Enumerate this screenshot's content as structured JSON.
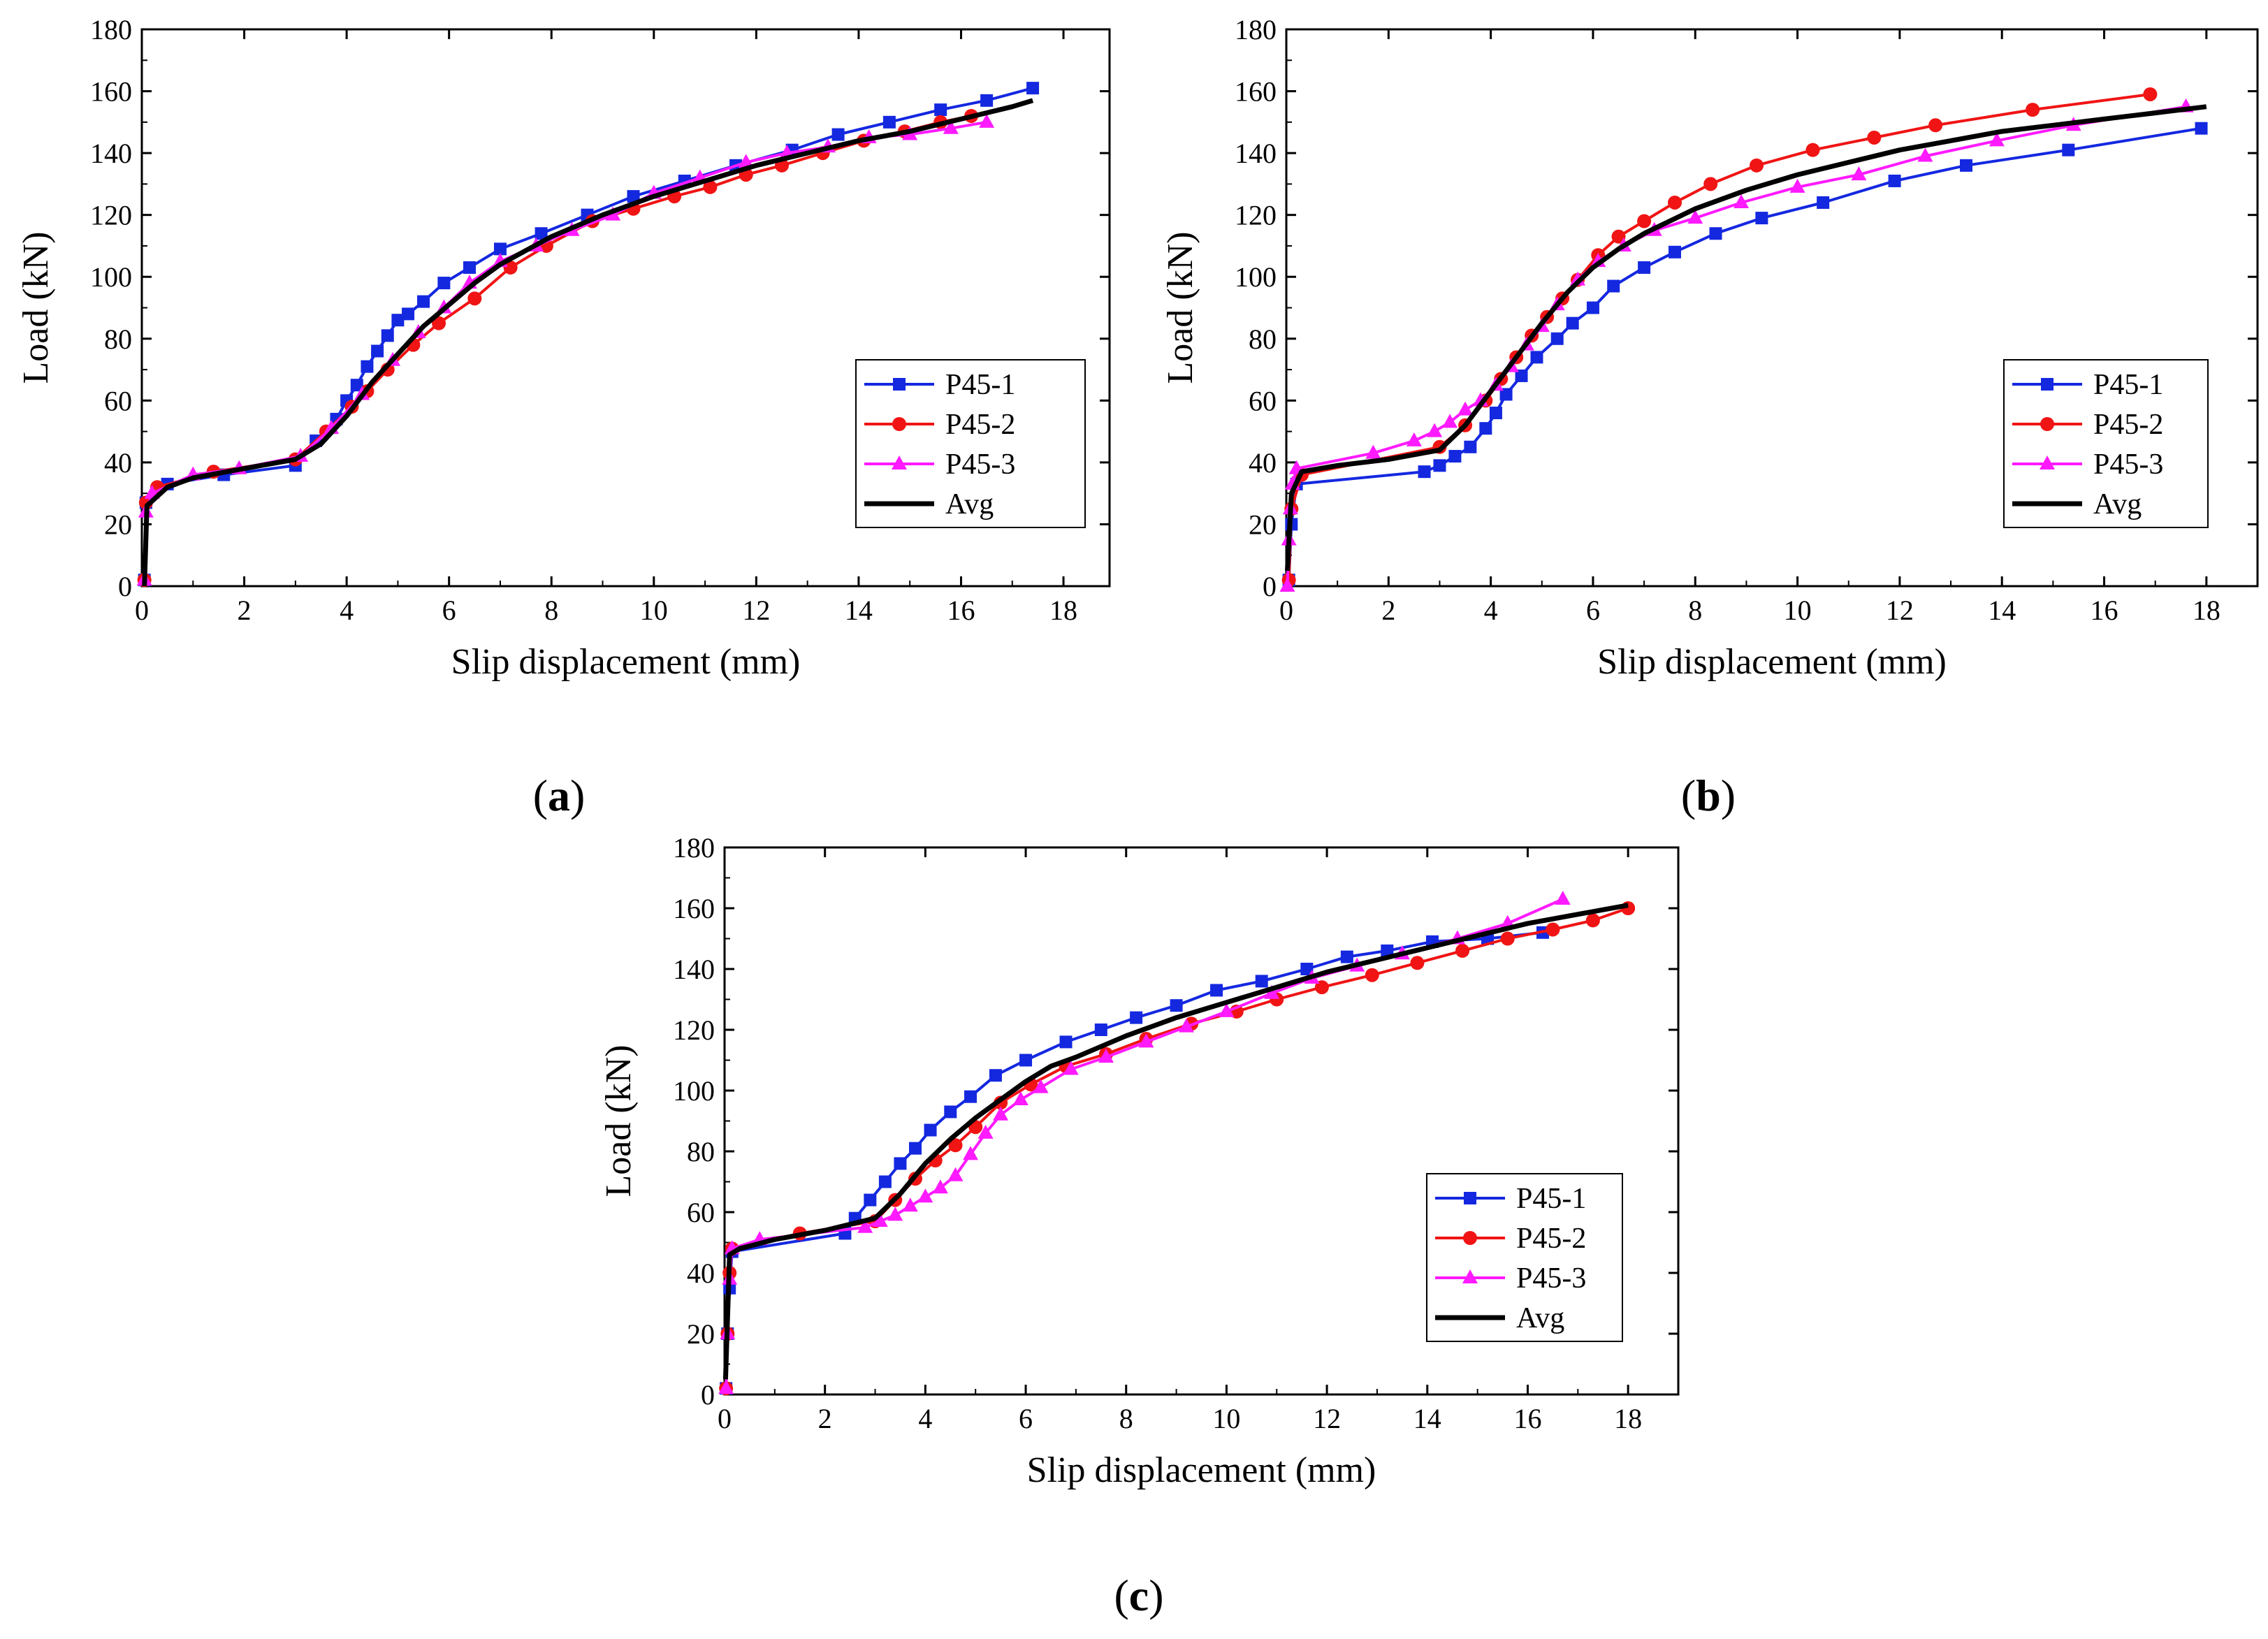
{
  "figure": {
    "panels": [
      "(a)",
      "(b)",
      "(c)"
    ],
    "panel_label_parts": [
      {
        "open": "(",
        "letter": "a",
        "close": ")"
      },
      {
        "open": "(",
        "letter": "b",
        "close": ")"
      },
      {
        "open": "(",
        "letter": "c",
        "close": ")"
      }
    ]
  },
  "colors": {
    "P45-1": "#1428e0",
    "P45-2": "#f01414",
    "P45-3": "#ff1aff",
    "Avg": "#000000"
  },
  "chart_data": [
    {
      "type": "line",
      "panel": "(a)",
      "xlabel": "Slip displacement (mm)",
      "ylabel": "Load (kN)",
      "xlim": [
        0,
        18.9
      ],
      "ylim": [
        0,
        180
      ],
      "xticks": [
        0,
        2,
        4,
        6,
        8,
        10,
        12,
        14,
        16,
        18
      ],
      "yticks": [
        0,
        20,
        40,
        60,
        80,
        100,
        120,
        140,
        160,
        180
      ],
      "legend": "bottom-right",
      "series": [
        {
          "name": "P45-1",
          "marker": "square",
          "x": [
            0.05,
            0.08,
            0.5,
            1.6,
            3.0,
            3.4,
            3.8,
            4.0,
            4.2,
            4.4,
            4.6,
            4.8,
            5.0,
            5.2,
            5.5,
            5.9,
            6.4,
            7.0,
            7.8,
            8.7,
            9.6,
            10.6,
            11.6,
            12.7,
            13.6,
            14.6,
            15.6,
            16.5,
            17.4
          ],
          "y": [
            2,
            27,
            33,
            36,
            39,
            47,
            54,
            60,
            65,
            71,
            76,
            81,
            86,
            88,
            92,
            98,
            103,
            109,
            114,
            120,
            126,
            131,
            136,
            141,
            146,
            150,
            154,
            157,
            161
          ]
        },
        {
          "name": "P45-2",
          "marker": "circle",
          "x": [
            0.05,
            0.08,
            0.3,
            1.4,
            3.0,
            3.6,
            4.1,
            4.4,
            4.8,
            5.3,
            5.8,
            6.5,
            7.2,
            7.9,
            8.8,
            9.6,
            10.4,
            11.1,
            11.8,
            12.5,
            13.3,
            14.1,
            14.9,
            15.6,
            16.2
          ],
          "y": [
            2,
            27,
            32,
            37,
            41,
            50,
            58,
            63,
            70,
            78,
            85,
            93,
            103,
            110,
            118,
            122,
            126,
            129,
            133,
            136,
            140,
            144,
            147,
            150,
            152
          ]
        },
        {
          "name": "P45-3",
          "marker": "triangle",
          "x": [
            0.05,
            0.08,
            0.2,
            1.0,
            1.9,
            3.1,
            3.7,
            4.3,
            4.9,
            5.4,
            5.9,
            6.4,
            7.0,
            7.7,
            8.4,
            9.2,
            10.0,
            10.9,
            11.8,
            12.6,
            13.4,
            14.2,
            15.0,
            15.8,
            16.5
          ],
          "y": [
            2,
            24,
            30,
            36,
            38,
            42,
            51,
            62,
            73,
            82,
            90,
            98,
            105,
            110,
            115,
            120,
            127,
            132,
            137,
            140,
            142,
            145,
            146,
            148,
            150
          ]
        },
        {
          "name": "Avg",
          "marker": "none",
          "x": [
            0.05,
            0.1,
            0.5,
            1.0,
            2.0,
            3.0,
            3.5,
            4.0,
            4.5,
            5.0,
            5.5,
            6.0,
            6.5,
            7.0,
            8.0,
            9.0,
            10.0,
            11.0,
            12.0,
            13.0,
            14.0,
            15.0,
            16.0,
            17.0,
            17.4
          ],
          "y": [
            0,
            26,
            32,
            35,
            38,
            41,
            46,
            55,
            66,
            75,
            84,
            91,
            98,
            104,
            113,
            120,
            126,
            131,
            136,
            140,
            144,
            147,
            151,
            155,
            157
          ]
        }
      ]
    },
    {
      "type": "line",
      "panel": "(b)",
      "xlabel": "Slip displacement (mm)",
      "ylabel": "Load (kN)",
      "xlim": [
        0,
        19.0
      ],
      "ylim": [
        0,
        180
      ],
      "xticks": [
        0,
        2,
        4,
        6,
        8,
        10,
        12,
        14,
        16,
        18
      ],
      "yticks": [
        0,
        20,
        40,
        60,
        80,
        100,
        120,
        140,
        160,
        180
      ],
      "legend": "bottom-right",
      "series": [
        {
          "name": "P45-1",
          "marker": "square",
          "x": [
            0.05,
            0.1,
            0.2,
            2.7,
            3.0,
            3.3,
            3.6,
            3.9,
            4.1,
            4.3,
            4.6,
            4.9,
            5.3,
            5.6,
            6.0,
            6.4,
            7.0,
            7.6,
            8.4,
            9.3,
            10.5,
            11.9,
            13.3,
            15.3,
            17.9
          ],
          "y": [
            2,
            20,
            33,
            37,
            39,
            42,
            45,
            51,
            56,
            62,
            68,
            74,
            80,
            85,
            90,
            97,
            103,
            108,
            114,
            119,
            124,
            131,
            136,
            141,
            148
          ]
        },
        {
          "name": "P45-2",
          "marker": "circle",
          "x": [
            0.05,
            0.1,
            0.3,
            3.0,
            3.5,
            3.9,
            4.2,
            4.5,
            4.8,
            5.1,
            5.4,
            5.7,
            6.1,
            6.5,
            7.0,
            7.6,
            8.3,
            9.2,
            10.3,
            11.5,
            12.7,
            14.6,
            16.9
          ],
          "y": [
            2,
            25,
            36,
            45,
            52,
            60,
            67,
            74,
            81,
            87,
            93,
            99,
            107,
            113,
            118,
            124,
            130,
            136,
            141,
            145,
            149,
            154,
            159
          ]
        },
        {
          "name": "P45-3",
          "marker": "triangle",
          "x": [
            0.02,
            0.05,
            0.08,
            0.12,
            0.2,
            1.7,
            2.5,
            2.9,
            3.2,
            3.5,
            3.8,
            4.1,
            4.4,
            4.7,
            5.0,
            5.3,
            5.7,
            6.1,
            6.6,
            7.2,
            8.0,
            8.9,
            10.0,
            11.2,
            12.5,
            13.9,
            15.4,
            17.6
          ],
          "y": [
            0,
            15,
            25,
            33,
            38,
            43,
            47,
            50,
            53,
            57,
            60,
            65,
            71,
            78,
            84,
            91,
            99,
            105,
            110,
            115,
            119,
            124,
            129,
            133,
            139,
            144,
            149,
            155
          ]
        },
        {
          "name": "Avg",
          "marker": "none",
          "x": [
            0.02,
            0.1,
            0.3,
            1.0,
            2.0,
            3.0,
            3.5,
            4.0,
            4.5,
            5.0,
            5.5,
            6.0,
            6.5,
            7.0,
            8.0,
            9.0,
            10.0,
            11.0,
            12.0,
            13.0,
            14.0,
            15.0,
            16.0,
            17.0,
            18.0
          ],
          "y": [
            5,
            30,
            37,
            39,
            41,
            44,
            52,
            63,
            74,
            85,
            95,
            103,
            109,
            114,
            122,
            128,
            133,
            137,
            141,
            144,
            147,
            149,
            151,
            153,
            155
          ]
        }
      ]
    },
    {
      "type": "line",
      "panel": "(c)",
      "xlabel": "Slip displacement (mm)",
      "ylabel": "Load (kN)",
      "xlim": [
        0,
        19.0
      ],
      "ylim": [
        0,
        180
      ],
      "xticks": [
        0,
        2,
        4,
        6,
        8,
        10,
        12,
        14,
        16,
        18
      ],
      "yticks": [
        0,
        20,
        40,
        60,
        80,
        100,
        120,
        140,
        160,
        180
      ],
      "legend": "bottom-right",
      "series": [
        {
          "name": "P45-1",
          "marker": "square",
          "x": [
            0.03,
            0.06,
            0.1,
            0.15,
            2.4,
            2.6,
            2.9,
            3.2,
            3.5,
            3.8,
            4.1,
            4.5,
            4.9,
            5.4,
            6.0,
            6.8,
            7.5,
            8.2,
            9.0,
            9.8,
            10.7,
            11.6,
            12.4,
            13.2,
            14.1,
            15.2,
            16.3
          ],
          "y": [
            2,
            20,
            35,
            47,
            53,
            58,
            64,
            70,
            76,
            81,
            87,
            93,
            98,
            105,
            110,
            116,
            120,
            124,
            128,
            133,
            136,
            140,
            144,
            146,
            149,
            150,
            152
          ]
        },
        {
          "name": "P45-2",
          "marker": "circle",
          "x": [
            0.03,
            0.06,
            0.1,
            0.15,
            1.5,
            3.0,
            3.4,
            3.8,
            4.2,
            4.6,
            5.0,
            5.5,
            6.1,
            6.8,
            7.6,
            8.4,
            9.3,
            10.2,
            11.0,
            11.9,
            12.9,
            13.8,
            14.7,
            15.6,
            16.5,
            17.3,
            18.0
          ],
          "y": [
            2,
            20,
            40,
            48,
            53,
            57,
            64,
            71,
            77,
            82,
            88,
            96,
            102,
            108,
            112,
            117,
            122,
            126,
            130,
            134,
            138,
            142,
            146,
            150,
            153,
            156,
            160
          ]
        },
        {
          "name": "P45-3",
          "marker": "triangle",
          "x": [
            0.03,
            0.06,
            0.1,
            0.15,
            0.7,
            2.8,
            3.1,
            3.4,
            3.7,
            4.0,
            4.3,
            4.6,
            4.9,
            5.2,
            5.5,
            5.9,
            6.3,
            6.9,
            7.6,
            8.4,
            9.2,
            10.0,
            10.9,
            11.7,
            12.6,
            13.5,
            14.6,
            15.6,
            16.7
          ],
          "y": [
            2,
            20,
            38,
            48,
            51,
            55,
            57,
            59,
            62,
            65,
            68,
            72,
            79,
            86,
            92,
            97,
            101,
            107,
            111,
            116,
            121,
            126,
            132,
            137,
            141,
            145,
            150,
            155,
            163
          ]
        },
        {
          "name": "Avg",
          "marker": "none",
          "x": [
            0.02,
            0.1,
            0.3,
            1.0,
            2.0,
            3.0,
            3.5,
            4.0,
            4.5,
            5.0,
            5.5,
            6.0,
            6.5,
            7.0,
            8.0,
            9.0,
            10.0,
            11.0,
            12.0,
            13.0,
            14.0,
            15.0,
            16.0,
            17.0,
            18.0
          ],
          "y": [
            5,
            46,
            48,
            51,
            54,
            58,
            66,
            76,
            84,
            91,
            97,
            103,
            108,
            111,
            118,
            124,
            129,
            134,
            139,
            143,
            147,
            151,
            155,
            158,
            161
          ]
        }
      ]
    }
  ]
}
